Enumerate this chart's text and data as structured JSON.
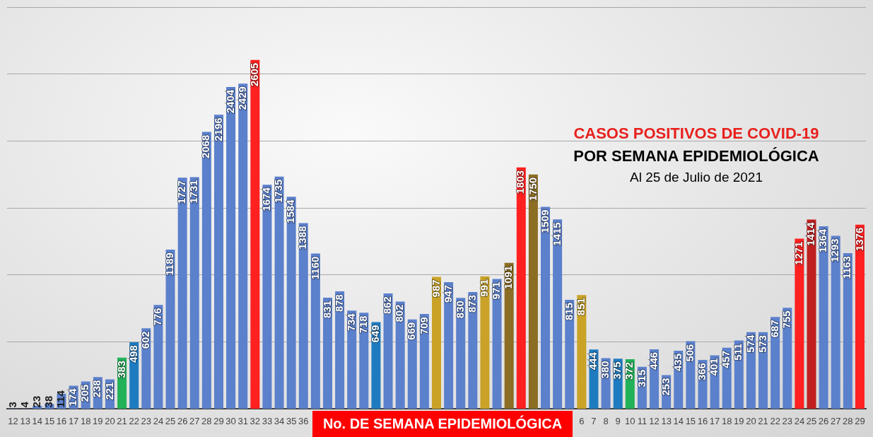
{
  "chart_data": {
    "type": "bar",
    "title": "CASOS POSITIVOS DE COVID-19",
    "subtitle": "POR SEMANA EPIDEMIOLÓGICA",
    "annotations": [
      "Al 25 de Julio de 2021"
    ],
    "xlabel": "No. DE SEMANA EPIDEMIOLÓGICA",
    "categories": [
      "12",
      "13",
      "14",
      "15",
      "16",
      "17",
      "18",
      "19",
      "20",
      "21",
      "22",
      "23",
      "24",
      "25",
      "26",
      "27",
      "28",
      "29",
      "30",
      "31",
      "32",
      "33",
      "34",
      "35",
      "36",
      null,
      null,
      null,
      null,
      null,
      null,
      null,
      null,
      null,
      null,
      null,
      null,
      null,
      null,
      null,
      null,
      null,
      null,
      null,
      null,
      null,
      null,
      "6",
      "7",
      "8",
      "9",
      "10",
      "11",
      "12",
      "13",
      "14",
      "15",
      "16",
      "17",
      "18",
      "19",
      "20",
      "21",
      "22",
      "23",
      "24",
      "25",
      "26",
      "27",
      "28",
      "29"
    ],
    "values": [
      3,
      4,
      23,
      38,
      114,
      174,
      205,
      238,
      221,
      383,
      498,
      602,
      776,
      1189,
      1727,
      1731,
      2068,
      2196,
      2404,
      2429,
      2605,
      1674,
      1735,
      1584,
      1388,
      1160,
      831,
      878,
      734,
      718,
      649,
      862,
      802,
      669,
      709,
      987,
      947,
      830,
      873,
      991,
      971,
      1091,
      1803,
      1750,
      1509,
      1415,
      815,
      851,
      444,
      380,
      375,
      372,
      315,
      446,
      253,
      435,
      506,
      366,
      401,
      457,
      511,
      574,
      573,
      687,
      755,
      1271,
      1414,
      1364,
      1293,
      1163,
      1376
    ],
    "colors": [
      "#5b80cc",
      "#5b80cc",
      "#5b80cc",
      "#5b80cc",
      "#5b80cc",
      "#5b80cc",
      "#5b80cc",
      "#5b80cc",
      "#5b80cc",
      "#22b158",
      "#1f7bc0",
      "#5b80cc",
      "#5b80cc",
      "#5b80cc",
      "#5b80cc",
      "#5b80cc",
      "#5b80cc",
      "#5b80cc",
      "#5b80cc",
      "#5b80cc",
      "#ff2020",
      "#5b80cc",
      "#5b80cc",
      "#5b80cc",
      "#5b80cc",
      "#5b80cc",
      "#5b80cc",
      "#5b80cc",
      "#5b80cc",
      "#5b80cc",
      "#1f7bc0",
      "#5b80cc",
      "#5b80cc",
      "#5b80cc",
      "#5b80cc",
      "#c9a227",
      "#5b80cc",
      "#5b80cc",
      "#5b80cc",
      "#c9a227",
      "#5b80cc",
      "#8b6d23",
      "#ff2020",
      "#8b6d23",
      "#5b80cc",
      "#5b80cc",
      "#5b80cc",
      "#c9a227",
      "#1f7bc0",
      "#5b80cc",
      "#1f7bc0",
      "#22b158",
      "#5b80cc",
      "#5b80cc",
      "#5b80cc",
      "#5b80cc",
      "#5b80cc",
      "#5b80cc",
      "#5b80cc",
      "#5b80cc",
      "#5b80cc",
      "#5b80cc",
      "#5b80cc",
      "#5b80cc",
      "#5b80cc",
      "#ff2020",
      "#c0201f",
      "#5b80cc",
      "#5b80cc",
      "#5b80cc",
      "#ff2020"
    ],
    "ylim": [
      0,
      3000
    ],
    "yticks": [
      {
        "value": 0,
        "label": null
      },
      {
        "value": 500,
        "label": null
      },
      {
        "value": 1000,
        "label": null
      },
      {
        "value": 1500,
        "label": null
      },
      {
        "value": 2000,
        "label": null
      },
      {
        "value": 2500,
        "label": null
      },
      {
        "value": 3000,
        "label": null
      }
    ],
    "tick_labels": "x",
    "grid": "y",
    "legend": false,
    "data_labels": true
  }
}
